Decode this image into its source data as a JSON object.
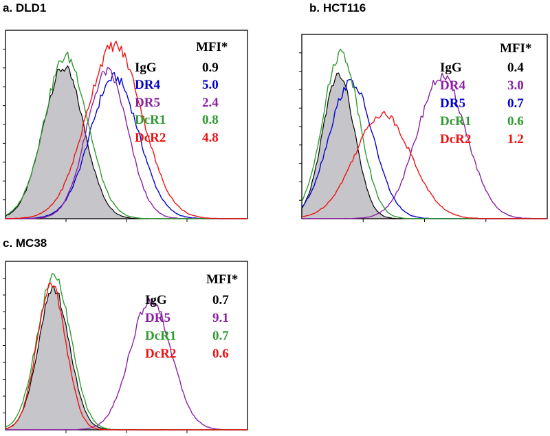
{
  "chart_data": [
    {
      "type": "histogram-overlay",
      "panel_label": "a. DLD1",
      "legend_header": "MFI*",
      "series": [
        {
          "name": "IgG",
          "mfi": "0.9",
          "color": "#000000",
          "filled": true,
          "peak": 0.24,
          "width": 0.085,
          "height": 0.8
        },
        {
          "name": "DR4",
          "mfi": "5.0",
          "color": "#0000cc",
          "filled": false,
          "peak": 0.45,
          "width": 0.1,
          "height": 0.75
        },
        {
          "name": "DR5",
          "mfi": "2.4",
          "color": "#8b1fa3",
          "filled": false,
          "peak": 0.42,
          "width": 0.085,
          "height": 0.78
        },
        {
          "name": "DcR1",
          "mfi": "0.8",
          "color": "#2e9b2e",
          "filled": false,
          "peak": 0.25,
          "width": 0.09,
          "height": 0.86
        },
        {
          "name": "DcR2",
          "mfi": "4.8",
          "color": "#ee1111",
          "filled": false,
          "peak": 0.45,
          "width": 0.115,
          "height": 0.92
        }
      ]
    },
    {
      "type": "histogram-overlay",
      "panel_label": "b. HCT116",
      "legend_header": "MFI*",
      "series": [
        {
          "name": "IgG",
          "mfi": "0.4",
          "color": "#000000",
          "filled": true,
          "peak": 0.15,
          "width": 0.065,
          "height": 0.78
        },
        {
          "name": "DR4",
          "mfi": "3.0",
          "color": "#8b1fa3",
          "filled": false,
          "peak": 0.57,
          "width": 0.1,
          "height": 0.77
        },
        {
          "name": "DR5",
          "mfi": "0.7",
          "color": "#0000cc",
          "filled": false,
          "peak": 0.2,
          "width": 0.09,
          "height": 0.74
        },
        {
          "name": "DcR1",
          "mfi": "0.6",
          "color": "#2e9b2e",
          "filled": false,
          "peak": 0.16,
          "width": 0.075,
          "height": 0.9
        },
        {
          "name": "DcR2",
          "mfi": "1.2",
          "color": "#ee1111",
          "filled": false,
          "peak": 0.33,
          "width": 0.115,
          "height": 0.57
        }
      ]
    },
    {
      "type": "histogram-overlay",
      "panel_label": "c. MC38",
      "legend_header": "MFI*",
      "series": [
        {
          "name": "IgG",
          "mfi": "0.7",
          "color": "#000000",
          "filled": true,
          "peak": 0.2,
          "width": 0.065,
          "height": 0.83
        },
        {
          "name": "DR5",
          "mfi": "9.1",
          "color": "#8b1fa3",
          "filled": false,
          "peak": 0.6,
          "width": 0.085,
          "height": 0.77
        },
        {
          "name": "DcR1",
          "mfi": "0.7",
          "color": "#2e9b2e",
          "filled": false,
          "peak": 0.2,
          "width": 0.07,
          "height": 0.91
        },
        {
          "name": "DcR2",
          "mfi": "0.6",
          "color": "#ee1111",
          "filled": false,
          "peak": 0.19,
          "width": 0.06,
          "height": 0.86
        }
      ]
    }
  ]
}
